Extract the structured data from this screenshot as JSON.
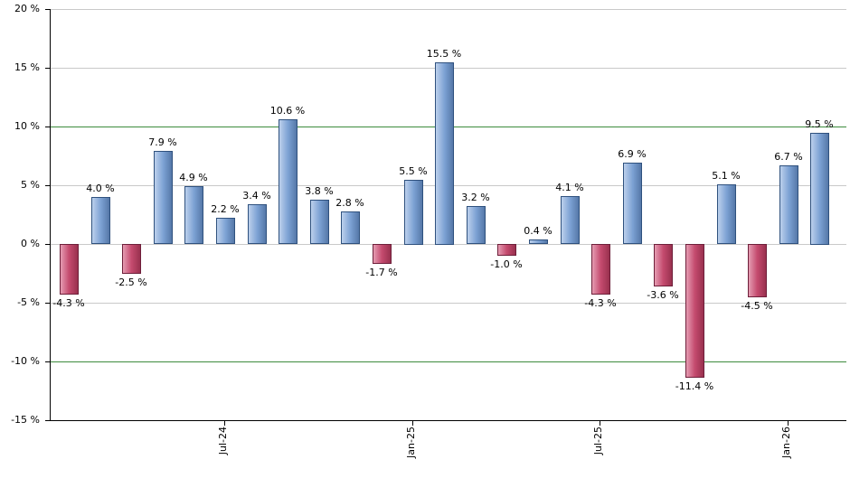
{
  "chart_data": {
    "type": "bar",
    "title": "",
    "xlabel": "",
    "ylabel": "",
    "ylim": [
      -15,
      20
    ],
    "grid": true,
    "legend": "none",
    "y_ticks": [
      {
        "value": 20,
        "label": "20 %"
      },
      {
        "value": 15,
        "label": "15 %"
      },
      {
        "value": 10,
        "label": "10 %"
      },
      {
        "value": 5,
        "label": "5 %"
      },
      {
        "value": 0,
        "label": "0 %"
      },
      {
        "value": -5,
        "label": "-5 %"
      },
      {
        "value": -10,
        "label": "-10 %"
      },
      {
        "value": -15,
        "label": "-15 %"
      }
    ],
    "x_ticks": [
      {
        "label": "Jul-24",
        "bar_index": 5
      },
      {
        "label": "Jan-25",
        "bar_index": 11
      },
      {
        "label": "Jul-25",
        "bar_index": 17
      },
      {
        "label": "Jan-26",
        "bar_index": 23
      }
    ],
    "highlight_lines": [
      10,
      -10
    ],
    "bars": [
      {
        "value": -4.3,
        "label": "-4.3 %"
      },
      {
        "value": 4.0,
        "label": "4.0 %"
      },
      {
        "value": -2.5,
        "label": "-2.5 %"
      },
      {
        "value": 7.9,
        "label": "7.9 %"
      },
      {
        "value": 4.9,
        "label": "4.9 %"
      },
      {
        "value": 2.2,
        "label": "2.2 %"
      },
      {
        "value": 3.4,
        "label": "3.4 %"
      },
      {
        "value": 10.6,
        "label": "10.6 %"
      },
      {
        "value": 3.8,
        "label": "3.8 %"
      },
      {
        "value": 2.8,
        "label": "2.8 %"
      },
      {
        "value": -1.7,
        "label": "-1.7 %"
      },
      {
        "value": 5.5,
        "label": "5.5 %"
      },
      {
        "value": 15.5,
        "label": "15.5 %"
      },
      {
        "value": 3.2,
        "label": "3.2 %"
      },
      {
        "value": -1.0,
        "label": "-1.0 %"
      },
      {
        "value": 0.4,
        "label": "0.4 %"
      },
      {
        "value": 4.1,
        "label": "4.1 %"
      },
      {
        "value": -4.3,
        "label": "-4.3 %"
      },
      {
        "value": 6.9,
        "label": "6.9 %"
      },
      {
        "value": -3.6,
        "label": "-3.6 %"
      },
      {
        "value": -11.4,
        "label": "-11.4 %"
      },
      {
        "value": 5.1,
        "label": "5.1 %"
      },
      {
        "value": -4.5,
        "label": "-4.5 %"
      },
      {
        "value": 6.7,
        "label": "6.7 %"
      },
      {
        "value": 9.5,
        "label": "9.5 %"
      }
    ],
    "colors": {
      "positive_bar_light": "#bcd0ec",
      "positive_bar_mid": "#7da2d4",
      "positive_bar_dark": "#5578a8",
      "positive_bar_border": "#2f517e",
      "negative_bar_light": "#e59cb2",
      "negative_bar_mid": "#c44a6e",
      "negative_bar_dark": "#99314f",
      "negative_bar_border": "#6e1f3a",
      "gridline": "#c9c9c9",
      "highlight_line": "#3d8b3d",
      "axis": "#000000",
      "label_text": "#000000"
    }
  }
}
